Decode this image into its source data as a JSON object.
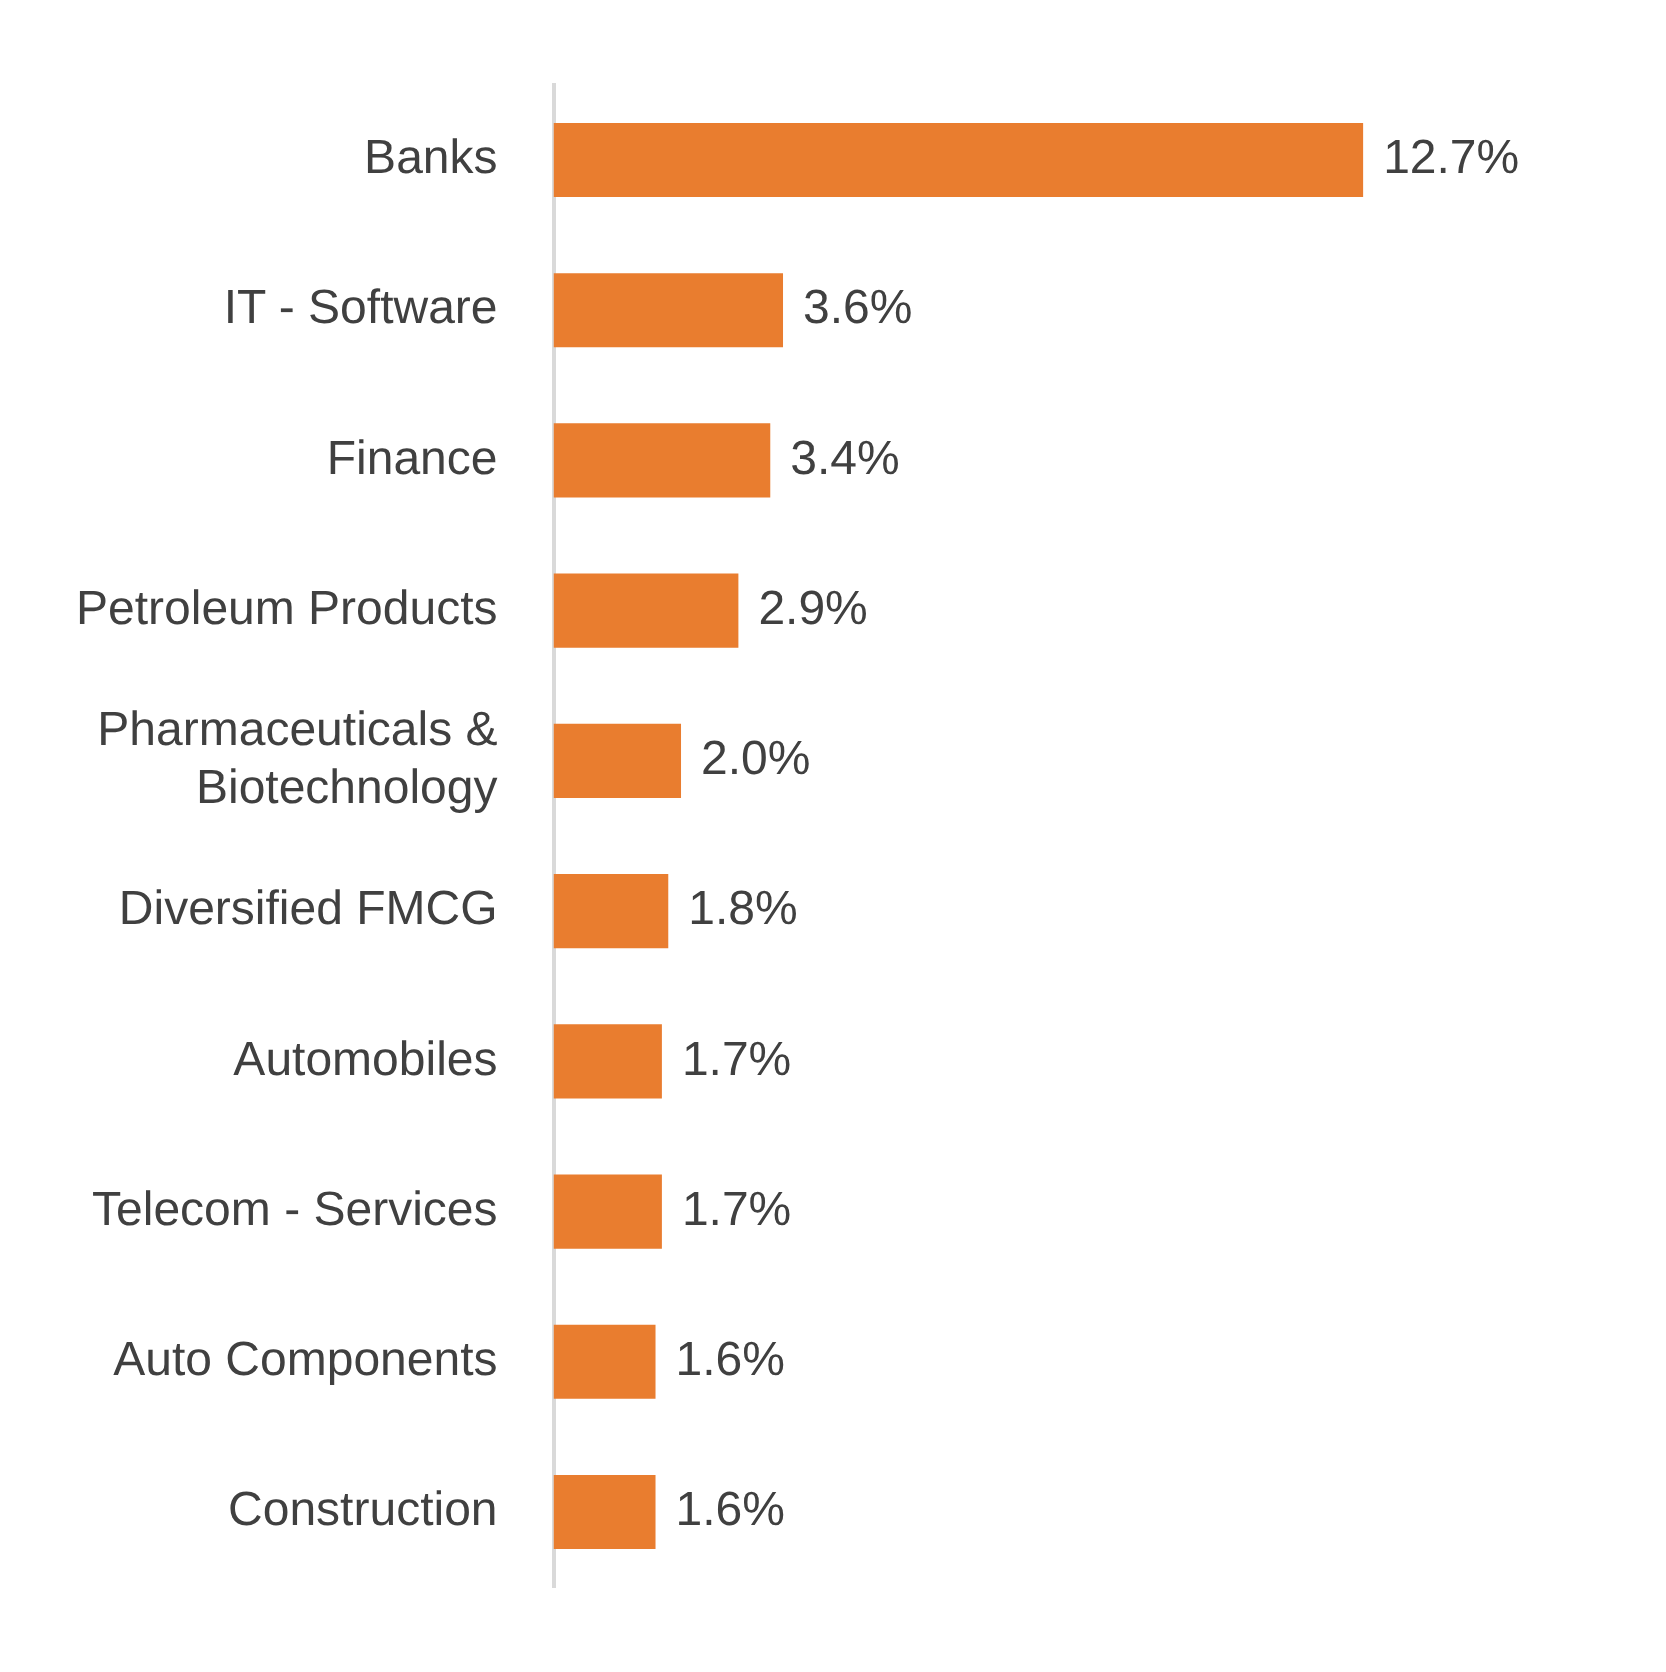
{
  "chart_data": {
    "type": "bar",
    "orientation": "horizontal",
    "categories": [
      "Banks",
      "IT - Software",
      "Finance",
      "Petroleum Products",
      "Pharmaceuticals & Biotechnology",
      "Diversified FMCG",
      "Automobiles",
      "Telecom - Services",
      "Auto Components",
      "Construction"
    ],
    "values": [
      12.7,
      3.6,
      3.4,
      2.9,
      2.0,
      1.8,
      1.7,
      1.7,
      1.6,
      1.6
    ],
    "value_labels": [
      "12.7%",
      "3.6%",
      "3.4%",
      "2.9%",
      "2.0%",
      "1.8%",
      "1.7%",
      "1.7%",
      "1.6%",
      "1.6%"
    ],
    "color": "#e97d2f",
    "legend": false
  }
}
